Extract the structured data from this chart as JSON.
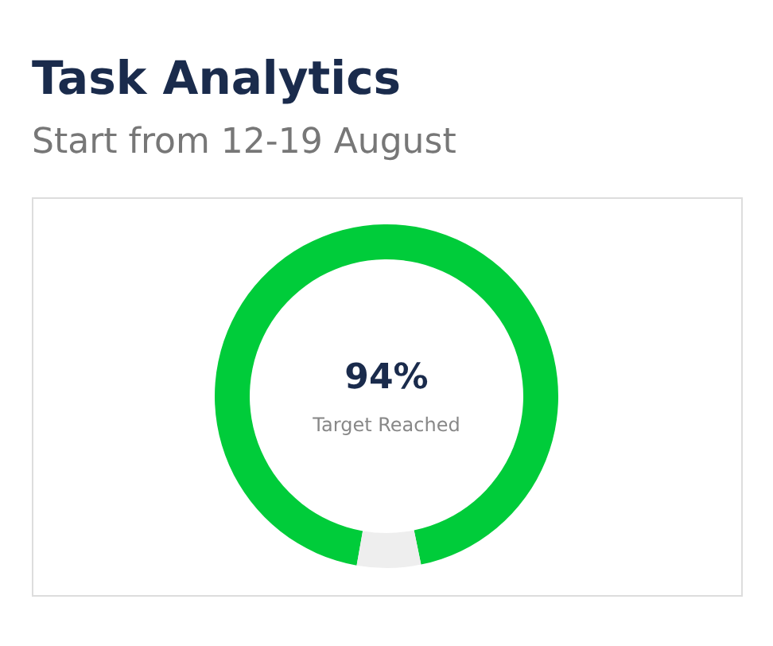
{
  "chart_data": {
    "type": "donut",
    "title": "Task Analytics",
    "subtitle": "Start from 12-19 August",
    "categories": [
      null,
      null
    ],
    "values": [
      94,
      6
    ],
    "colors": [
      "#00cc3a",
      "#eeeeee"
    ],
    "value_labels": [
      "94%",
      null
    ],
    "annotations": [
      "Target Reached"
    ],
    "legend": false
  }
}
